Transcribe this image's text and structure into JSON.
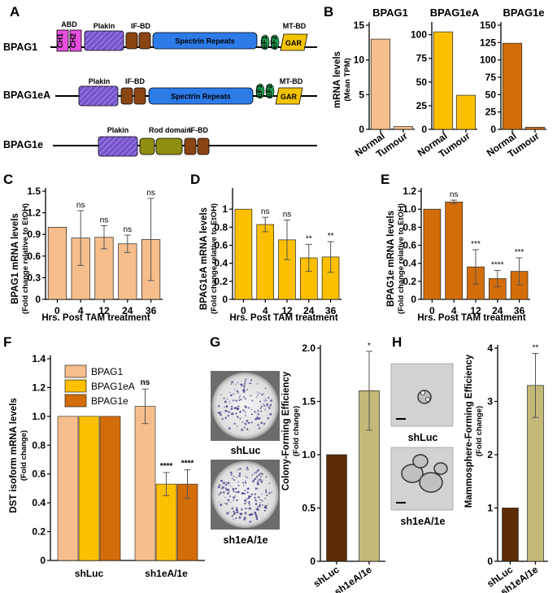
{
  "figure": {
    "panel_labels": [
      "A",
      "B",
      "C",
      "D",
      "E",
      "F",
      "G",
      "H"
    ],
    "colors": {
      "bpag1": "#f6be8c",
      "bpag1ea": "#fcc000",
      "bpag1e": "#d36d09",
      "shluc_bar": "#5c2c05",
      "sh1ea_bar": "#c4b979",
      "ch": "#e64fde",
      "plakin": "#7653c9",
      "ifbd": "#8b4513",
      "spectrin": "#2d7be8",
      "ef": "#1e9c4e",
      "gar": "#f2c400",
      "rod": "#8f8d12"
    },
    "gene_structures": [
      {
        "name": "BPAG1",
        "domains": {
          "abd": "ABD",
          "ch1": "CH1",
          "ch2": "CH2",
          "plakin": "Plakin",
          "ifbd": "IF-BD",
          "spectrin": "Spectrin Repeats",
          "ef1": "EF1",
          "ef2": "EF2",
          "mtbd": "MT-BD",
          "gar": "GAR"
        }
      },
      {
        "name": "BPAG1eA",
        "domains": {
          "plakin": "Plakin",
          "ifbd": "IF-BD",
          "spectrin": "Spectrin Repeats",
          "ef1": "EF1",
          "ef2": "EF2",
          "mtbd": "MT-BD",
          "gar": "GAR"
        }
      },
      {
        "name": "BPAG1e",
        "domains": {
          "plakin": "Plakin",
          "rod": "Rod domain",
          "ifbd": "IF-BD"
        }
      }
    ],
    "images": {
      "g_top_caption": "shLuc",
      "g_bottom_caption": "sh1eA/1e",
      "h_top_caption": "shLuc",
      "h_bottom_caption": "sh1eA/1e"
    }
  },
  "chart_data": [
    {
      "panel": "B",
      "type": "bar",
      "ylabel": "mRNA levels",
      "ylabel_sub": "(Mean TPM)",
      "subplots": [
        {
          "title": "BPAG1",
          "categories": [
            "Normal",
            "Tumour"
          ],
          "values": [
            13,
            0.4
          ],
          "ylim": [
            0,
            15
          ],
          "yticks": [
            0,
            5,
            10,
            15
          ],
          "color_key": "bpag1"
        },
        {
          "title": "BPAG1eA",
          "categories": [
            "Normal",
            "Tumour"
          ],
          "values": [
            103,
            36
          ],
          "ylim": [
            0,
            110
          ],
          "yticks": [
            0,
            25,
            50,
            75,
            100
          ],
          "color_key": "bpag1ea"
        },
        {
          "title": "BPAG1e",
          "categories": [
            "Normal",
            "Tumour"
          ],
          "values": [
            124,
            3
          ],
          "ylim": [
            0,
            150
          ],
          "yticks": [
            0,
            25,
            50,
            75,
            100,
            125,
            150
          ],
          "color_key": "bpag1e"
        }
      ]
    },
    {
      "panel": "C",
      "type": "bar",
      "ylabel": "BPAG1 mRNA levels",
      "ylabel_sub": "(Fold change relative to EtOH)",
      "xlabel": "Hrs. Post TAM treatment",
      "categories": [
        "0",
        "4",
        "12",
        "24",
        "36"
      ],
      "values": [
        1.0,
        0.85,
        0.86,
        0.77,
        0.83
      ],
      "errors": [
        0,
        0.38,
        0.16,
        0.12,
        0.57
      ],
      "significance": [
        "",
        "ns",
        "ns",
        "ns",
        "ns"
      ],
      "ylim": [
        0,
        1.5
      ],
      "yticks": [
        "0",
        "0.3",
        "0.6",
        "0.9",
        "1.2",
        "1.5"
      ],
      "color_key": "bpag1"
    },
    {
      "panel": "D",
      "type": "bar",
      "ylabel": "BPAG1eA mRNA levels",
      "ylabel_sub": "(Fold change relative to EtOH)",
      "xlabel": "Hrs. Post TAM treatment",
      "categories": [
        "0",
        "4",
        "12",
        "24",
        "36"
      ],
      "values": [
        1.0,
        0.83,
        0.66,
        0.46,
        0.47
      ],
      "errors": [
        0,
        0.08,
        0.22,
        0.15,
        0.17
      ],
      "significance": [
        "",
        "ns",
        "ns",
        "**",
        "**"
      ],
      "ylim": [
        0,
        1.2
      ],
      "yticks": [
        "0",
        "0.2",
        "0.4",
        "0.6",
        "0.8",
        "1"
      ],
      "color_key": "bpag1ea"
    },
    {
      "panel": "E",
      "type": "bar",
      "ylabel": "BPAG1e mRNA levels",
      "ylabel_sub": "(Fold change relative to EtOH)",
      "xlabel": "Hrs. Post TAM treatment",
      "categories": [
        "0",
        "4",
        "12",
        "24",
        "36"
      ],
      "values": [
        1.0,
        1.08,
        0.36,
        0.23,
        0.31
      ],
      "errors": [
        0,
        0.02,
        0.19,
        0.09,
        0.15
      ],
      "significance": [
        "",
        "ns",
        "***",
        "****",
        "***"
      ],
      "ylim": [
        0,
        1.2
      ],
      "yticks": [
        "0",
        "0.2",
        "0.4",
        "0.6",
        "0.8",
        "1.0",
        "1.2"
      ],
      "color_key": "bpag1e"
    },
    {
      "panel": "F",
      "type": "bar",
      "ylabel": "DST isoform mRNA levels",
      "ylabel_sub": "(Fold change)",
      "categories": [
        "shLuc",
        "sh1eA/1e"
      ],
      "series": [
        {
          "name": "BPAG1",
          "color_key": "bpag1",
          "values": [
            1.0,
            1.07
          ],
          "errors": [
            0,
            0.12
          ],
          "significance": [
            "",
            "ns"
          ]
        },
        {
          "name": "BPAG1eA",
          "color_key": "bpag1ea",
          "values": [
            1.0,
            0.53
          ],
          "errors": [
            0,
            0.08
          ],
          "significance": [
            "",
            "****"
          ]
        },
        {
          "name": "BPAG1e",
          "color_key": "bpag1e",
          "values": [
            1.0,
            0.53
          ],
          "errors": [
            0,
            0.1
          ],
          "significance": [
            "",
            "****"
          ]
        }
      ],
      "ylim": [
        0,
        1.4
      ],
      "yticks": [
        "0",
        "0.2",
        "0.4",
        "0.6",
        "0.8",
        "1.0",
        "1.2",
        "1.4"
      ],
      "legend": "top-left"
    },
    {
      "panel": "G",
      "type": "bar",
      "ylabel": "Colony-Forming Efficiency",
      "ylabel_sub": "(Fold change)",
      "categories": [
        "shLuc",
        "sh1eA/1e"
      ],
      "values": [
        1.0,
        1.6
      ],
      "errors": [
        0,
        0.37
      ],
      "significance": [
        "",
        "*"
      ],
      "ylim": [
        0,
        2.0
      ],
      "yticks": [
        "0",
        "0.5",
        "1.0",
        "1.5",
        "2.0"
      ],
      "color_keys": [
        "shluc_bar",
        "sh1ea_bar"
      ]
    },
    {
      "panel": "H",
      "type": "bar",
      "ylabel": "Mammosphere-Forming Efficiency",
      "ylabel_sub": "(Fold change)",
      "categories": [
        "shLuc",
        "sh1eA/1e"
      ],
      "values": [
        1.0,
        3.3
      ],
      "errors": [
        0,
        0.6
      ],
      "significance": [
        "",
        "**"
      ],
      "ylim": [
        0,
        4
      ],
      "yticks": [
        "0",
        "1",
        "2",
        "3",
        "4"
      ],
      "color_keys": [
        "shluc_bar",
        "sh1ea_bar"
      ]
    }
  ]
}
